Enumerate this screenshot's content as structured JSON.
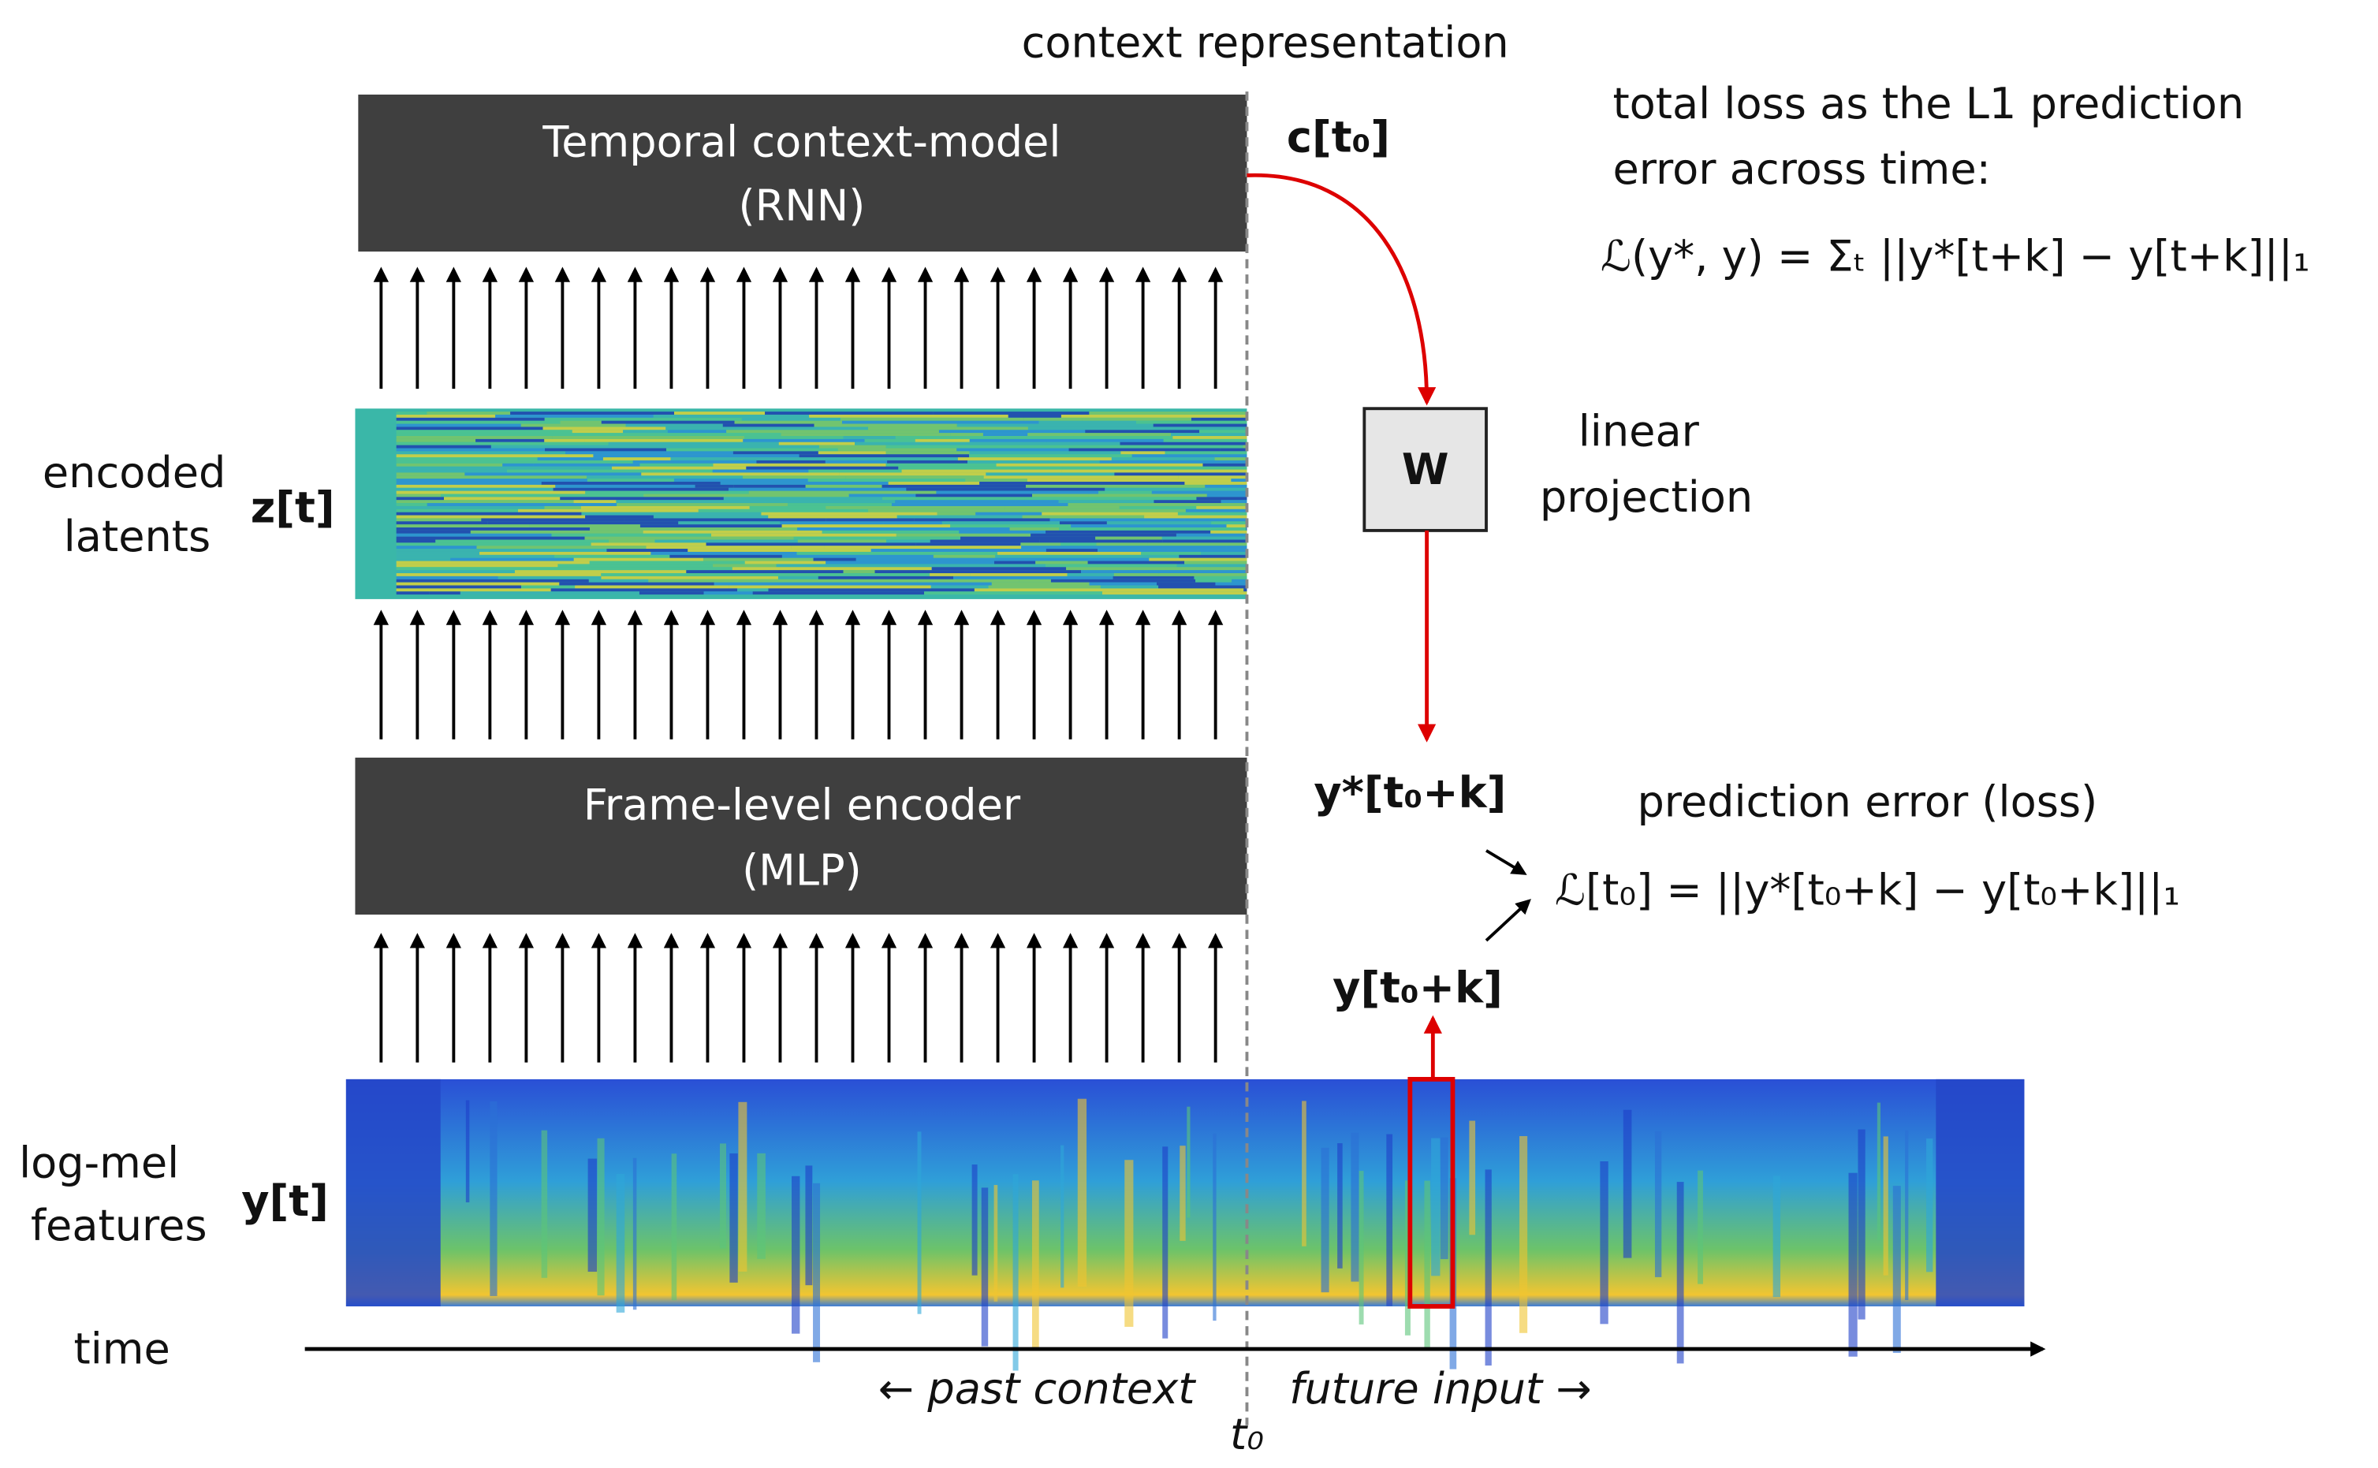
{
  "header": {
    "context_label": "context representation",
    "context_symbol": "c[t₀]"
  },
  "loss": {
    "title_line1": "total loss as the L1 prediction",
    "title_line2": "error across time:",
    "formula": "ℒ(y*, y) = Σₜ ||y*[t+k] − y[t+k]||₁"
  },
  "blocks": {
    "rnn": {
      "line1": "Temporal context-model",
      "line2": "(RNN)"
    },
    "mlp": {
      "line1": "Frame-level encoder",
      "line2": "(MLP)"
    },
    "w": "W"
  },
  "projection": {
    "line1": "linear",
    "line2": "projection"
  },
  "latents": {
    "line1": "encoded",
    "line2": "latents",
    "symbol": "z[t]"
  },
  "prediction": {
    "predicted": "y*[t₀+k]",
    "title": "prediction error (loss)",
    "formula": "ℒ[t₀] = ||y*[t₀+k] − y[t₀+k]||₁",
    "target": "y[t₀+k]"
  },
  "features": {
    "line1": "log-mel",
    "line2": "features",
    "symbol": "y[t]"
  },
  "timeline": {
    "label": "time",
    "past": "← past context",
    "future": "future input →",
    "t0": "t₀"
  }
}
